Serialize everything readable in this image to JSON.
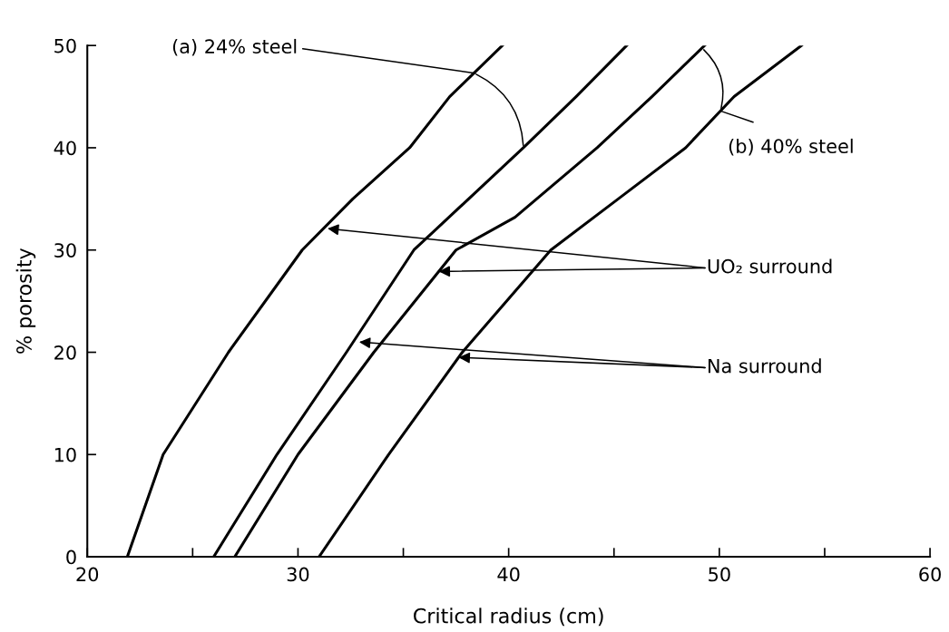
{
  "chart_data": {
    "type": "line",
    "xlabel": "Critical radius (cm)",
    "ylabel": "% porosity",
    "xlim": [
      20,
      60
    ],
    "ylim": [
      0,
      50
    ],
    "xticks": [
      20,
      {
        "value": 25,
        "label": null
      },
      30,
      {
        "value": 35,
        "label": null
      },
      40,
      {
        "value": 45,
        "label": null
      },
      50,
      {
        "value": 55,
        "label": null
      },
      60
    ],
    "yticks": [
      0,
      10,
      20,
      30,
      40,
      50
    ],
    "grid": false,
    "legend": false,
    "marker": "none",
    "line_style": "solid",
    "series": [
      {
        "color": "#000000",
        "x": [
          21.9,
          23.6,
          26.7,
          30.2,
          32.6,
          35.3,
          37.2,
          39.7
        ],
        "values": [
          0,
          10,
          20,
          30,
          35,
          40,
          45,
          50
        ]
      },
      {
        "color": "#000000",
        "x": [
          26.0,
          29.0,
          32.3,
          35.5,
          40.7,
          43.2,
          45.6
        ],
        "values": [
          0,
          10,
          20,
          30,
          40,
          45,
          50
        ]
      },
      {
        "color": "#000000",
        "x": [
          27.0,
          30.0,
          33.6,
          37.5,
          40.3,
          44.2,
          46.8,
          49.3
        ],
        "values": [
          0,
          10,
          20,
          30,
          33.2,
          40,
          45,
          50
        ]
      },
      {
        "color": "#000000",
        "x": [
          31.0,
          34.3,
          37.8,
          42.0,
          45.2,
          48.4,
          50.7,
          53.9
        ],
        "values": [
          0,
          10,
          20,
          30,
          35,
          40,
          45,
          50
        ]
      }
    ],
    "annotations": [
      {
        "text": "(a) 24% steel",
        "x": 38.4,
        "y": 47.3
      },
      "(b) 40% steel",
      {
        "text": "UO₂ surround",
        "x": 31.4,
        "y": 32.1
      },
      {
        "text": "Na surround",
        "x": 32.9,
        "y": 21.0
      }
    ]
  }
}
